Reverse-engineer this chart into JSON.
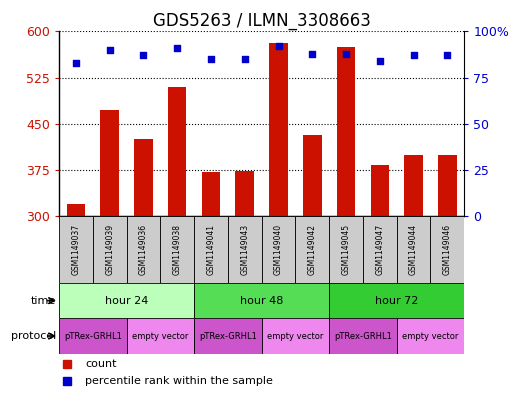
{
  "title": "GDS5263 / ILMN_3308663",
  "samples": [
    "GSM1149037",
    "GSM1149039",
    "GSM1149036",
    "GSM1149038",
    "GSM1149041",
    "GSM1149043",
    "GSM1149040",
    "GSM1149042",
    "GSM1149045",
    "GSM1149047",
    "GSM1149044",
    "GSM1149046"
  ],
  "counts": [
    320,
    472,
    425,
    510,
    372,
    373,
    582,
    432,
    575,
    383,
    400,
    400
  ],
  "percentile_ranks": [
    83,
    90,
    87,
    91,
    85,
    85,
    92,
    88,
    88,
    84,
    87,
    87
  ],
  "ylim_left": [
    300,
    600
  ],
  "ylim_right": [
    0,
    100
  ],
  "yticks_left": [
    300,
    375,
    450,
    525,
    600
  ],
  "yticks_right": [
    0,
    25,
    50,
    75,
    100
  ],
  "bar_color": "#cc1100",
  "dot_color": "#0000cc",
  "grid_color": "#000000",
  "title_fontsize": 12,
  "time_groups": [
    {
      "label": "hour 24",
      "start": 0,
      "end": 4,
      "color": "#bbffbb"
    },
    {
      "label": "hour 48",
      "start": 4,
      "end": 8,
      "color": "#55dd55"
    },
    {
      "label": "hour 72",
      "start": 8,
      "end": 12,
      "color": "#33cc33"
    }
  ],
  "protocol_groups": [
    {
      "label": "pTRex-GRHL1",
      "start": 0,
      "end": 2,
      "color": "#cc55cc"
    },
    {
      "label": "empty vector",
      "start": 2,
      "end": 4,
      "color": "#ee88ee"
    },
    {
      "label": "pTRex-GRHL1",
      "start": 4,
      "end": 6,
      "color": "#cc55cc"
    },
    {
      "label": "empty vector",
      "start": 6,
      "end": 8,
      "color": "#ee88ee"
    },
    {
      "label": "pTRex-GRHL1",
      "start": 8,
      "end": 10,
      "color": "#cc55cc"
    },
    {
      "label": "empty vector",
      "start": 10,
      "end": 12,
      "color": "#ee88ee"
    }
  ],
  "bg_color": "#ffffff",
  "plot_bg_color": "#ffffff",
  "axis_label_color_left": "#cc1100",
  "axis_label_color_right": "#0000cc",
  "sample_bg_color": "#cccccc"
}
